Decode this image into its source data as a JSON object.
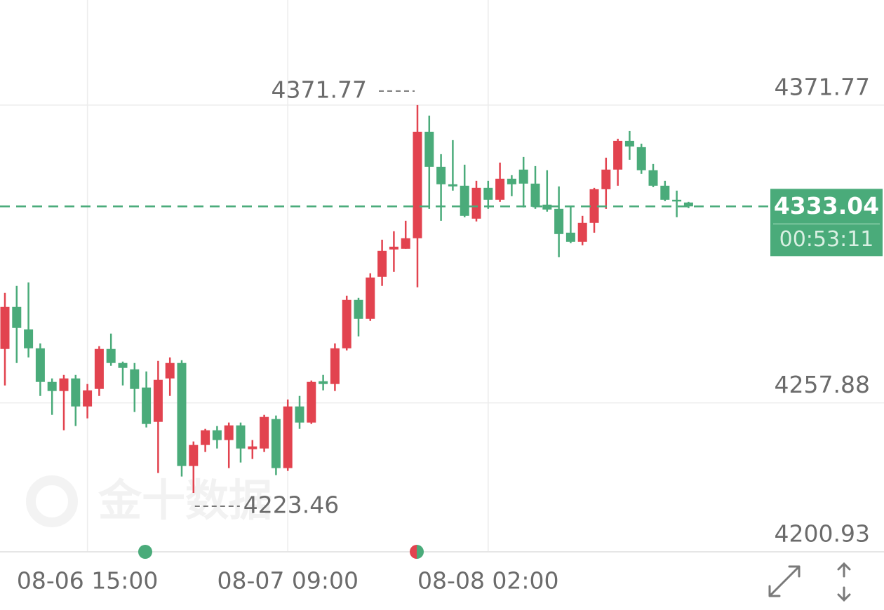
{
  "chart_data": {
    "type": "candlestick",
    "categories": [
      null,
      null,
      null,
      null,
      null,
      null,
      null,
      "08-06 15:00",
      null,
      null,
      null,
      null,
      null,
      null,
      null,
      null,
      null,
      null,
      null,
      null,
      null,
      null,
      null,
      null,
      "08-07 09:00",
      null,
      null,
      null,
      null,
      null,
      null,
      null,
      null,
      null,
      null,
      null,
      null,
      null,
      null,
      null,
      null,
      "08-08 02:00",
      null,
      null,
      null,
      null,
      null,
      null,
      null,
      null,
      null,
      null,
      null,
      null,
      null,
      null,
      null,
      null,
      null
    ],
    "open": [
      4278.5,
      4294.58,
      4286.0,
      4278.76,
      4265.9,
      4262.42,
      4267.24,
      4256.52,
      4263.22,
      4278.5,
      4273.14,
      4270.72,
      4263.76,
      4250.62,
      4267.24,
      4273.14,
      4233.74,
      4241.78,
      4247.41,
      4243.66,
      4249.28,
      4240.17,
      4240.44,
      4251.7,
      4232.94,
      4256.52,
      4250.36,
      4266.17,
      4265.1,
      4278.76,
      4297.26,
      4290.02,
      4306.1,
      4316.55,
      4316.82,
      4320.84,
      4361.58,
      4348.18,
      4341.48,
      4340.94,
      4328.34,
      4340.14,
      4335.58,
      4343.62,
      4347.1,
      4341.74,
      4333.7,
      4332.1,
      4322.98,
      4319.5,
      4326.74,
      4339.6,
      4347.1,
      4358.09,
      4355.68,
      4346.84,
      4340.94,
      4335.58,
      4334.51
    ],
    "high": [
      4299.94,
      4302.62,
      4303.96,
      4280.64,
      4267.24,
      4268.58,
      4268.58,
      4265.1,
      4279.57,
      4284.39,
      4273.67,
      4273.14,
      4269.92,
      4273.94,
      4275.28,
      4274.21,
      4243.12,
      4247.94,
      4249.02,
      4250.36,
      4250.36,
      4243.66,
      4253.3,
      4253.04,
      4259.2,
      4260.54,
      4266.44,
      4268.58,
      4280.64,
      4298.86,
      4298.06,
      4307.44,
      4320.3,
      4323.52,
      4327.54,
      4371.77,
      4367.74,
      4353.0,
      4358.36,
      4348.98,
      4342.82,
      4342.82,
      4349.78,
      4344.96,
      4351.93,
      4348.44,
      4346.84,
      4340.67,
      4332.9,
      4329.42,
      4340.14,
      4351.66,
      4358.9,
      4361.84,
      4357.02,
      4349.25,
      4342.82,
      4339.06,
      4334.78
    ],
    "low": [
      4264.56,
      4273.14,
      4275.28,
      4260.54,
      4253.3,
      4247.41,
      4249.02,
      4251.96,
      4260.54,
      4272.06,
      4264.56,
      4254.38,
      4248.48,
      4231.06,
      4260.54,
      4229.72,
      4223.46,
      4239.1,
      4240.44,
      4232.94,
      4235.08,
      4236.42,
      4239.1,
      4230.26,
      4231.86,
      4247.94,
      4249.82,
      4262.68,
      4262.42,
      4277.96,
      4283.32,
      4289.22,
      4302.62,
      4307.98,
      4316.82,
      4302.08,
      4332.1,
      4327.54,
      4339.06,
      4328.88,
      4327.27,
      4332.1,
      4334.78,
      4336.92,
      4332.63,
      4332.1,
      4331.02,
      4313.6,
      4318.96,
      4318.16,
      4322.98,
      4332.1,
      4340.94,
      4350.86,
      4345.5,
      4340.4,
      4335.04,
      4328.88,
      4332.36
    ],
    "close": [
      4294.58,
      4286.54,
      4278.76,
      4265.9,
      4262.42,
      4267.24,
      4256.52,
      4262.68,
      4278.5,
      4273.14,
      4271.26,
      4263.22,
      4249.82,
      4266.7,
      4273.14,
      4233.74,
      4241.78,
      4247.41,
      4243.66,
      4249.28,
      4240.44,
      4241.24,
      4252.5,
      4232.94,
      4256.52,
      4250.36,
      4265.9,
      4265.1,
      4278.76,
      4297.26,
      4290.02,
      4305.83,
      4316.02,
      4317.62,
      4320.84,
      4361.58,
      4348.18,
      4341.48,
      4340.67,
      4329.42,
      4340.14,
      4335.58,
      4343.62,
      4341.48,
      4341.74,
      4332.9,
      4331.83,
      4322.45,
      4319.5,
      4326.74,
      4339.6,
      4347.1,
      4358.09,
      4355.95,
      4346.84,
      4340.94,
      4335.58,
      4335.04,
      4333.04
    ],
    "up_color": "#e2434f",
    "down_color": "#4aab7a",
    "ylim": [
      4200.93,
      4411.96
    ],
    "yticks": [
      4200.93,
      4257.88,
      4371.77
    ],
    "grid": true,
    "high_marker": 4371.77,
    "low_marker": 4223.46,
    "last_price": 4333.04,
    "countdown": "00:53:11",
    "last_price_color": "#4aab7a",
    "watermark": "金十数据"
  }
}
